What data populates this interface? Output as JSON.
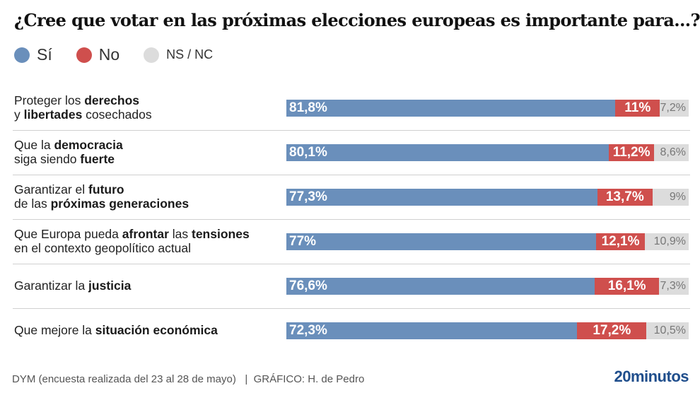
{
  "chart_data": {
    "type": "bar",
    "orientation": "horizontal-stacked",
    "title": "¿Cree que votar en las próximas elecciones europeas es importante para...?",
    "legend": [
      {
        "name": "Sí",
        "color": "#6a8fbb"
      },
      {
        "name": "No",
        "color": "#cf4f4d"
      },
      {
        "name": "NS / NC",
        "color": "#dcdcdc"
      }
    ],
    "legend_placement": "top-left",
    "categories": [
      "Proteger los derechos y libertades cosechados",
      "Que la democracia siga siendo fuerte",
      "Garantizar el futuro de las próximas generaciones",
      "Que Europa pueda afrontar las tensiones en el contexto geopolítico actual",
      "Garantizar la justicia",
      "Que mejore la situación económica"
    ],
    "category_labels": [
      {
        "line1": [
          {
            "t": "Proteger los ",
            "b": false
          },
          {
            "t": "derechos",
            "b": true
          }
        ],
        "line2": [
          {
            "t": "y ",
            "b": false
          },
          {
            "t": "libertades",
            "b": true
          },
          {
            "t": " cosechados",
            "b": false
          }
        ]
      },
      {
        "line1": [
          {
            "t": "Que la ",
            "b": false
          },
          {
            "t": "democracia",
            "b": true
          }
        ],
        "line2": [
          {
            "t": "siga siendo ",
            "b": false
          },
          {
            "t": "fuerte",
            "b": true
          }
        ]
      },
      {
        "line1": [
          {
            "t": "Garantizar el ",
            "b": false
          },
          {
            "t": "futuro",
            "b": true
          }
        ],
        "line2": [
          {
            "t": "de las ",
            "b": false
          },
          {
            "t": "próximas generaciones",
            "b": true
          }
        ]
      },
      {
        "line1": [
          {
            "t": "Que Europa pueda ",
            "b": false
          },
          {
            "t": "afrontar",
            "b": true
          },
          {
            "t": " las ",
            "b": false
          },
          {
            "t": "tensiones",
            "b": true
          }
        ],
        "line2": [
          {
            "t": "en el contexto geopolítico actual",
            "b": false
          }
        ]
      },
      {
        "line1": [
          {
            "t": "Garantizar la ",
            "b": false
          },
          {
            "t": "justicia",
            "b": true
          }
        ],
        "line2": []
      },
      {
        "line1": [
          {
            "t": "Que mejore la ",
            "b": false
          },
          {
            "t": "situación económica",
            "b": true
          }
        ],
        "line2": []
      }
    ],
    "series": [
      {
        "name": "Sí",
        "values": [
          81.8,
          80.1,
          77.3,
          77,
          76.6,
          72.3
        ],
        "labels": [
          "81,8%",
          "80,1%",
          "77,3%",
          "77%",
          "76,6%",
          "72,3%"
        ]
      },
      {
        "name": "No",
        "values": [
          11,
          11.2,
          13.7,
          12.1,
          16.1,
          17.2
        ],
        "labels": [
          "11%",
          "11,2%",
          "13,7%",
          "12,1%",
          "16,1%",
          "17,2%"
        ]
      },
      {
        "name": "NS / NC",
        "values": [
          7.2,
          8.6,
          9,
          10.9,
          7.3,
          10.5
        ],
        "labels": [
          "7,2%",
          "8,6%",
          "9%",
          "10,9%",
          "7,3%",
          "10,5%"
        ]
      }
    ],
    "xlim": [
      0,
      100
    ],
    "grid": false,
    "xlabel": "",
    "ylabel": ""
  },
  "footer": {
    "source": "DYM (encuesta realizada del 23 al 28 de mayo)   |  GRÁFICO: H. de Pedro",
    "logo": "20minutos"
  }
}
